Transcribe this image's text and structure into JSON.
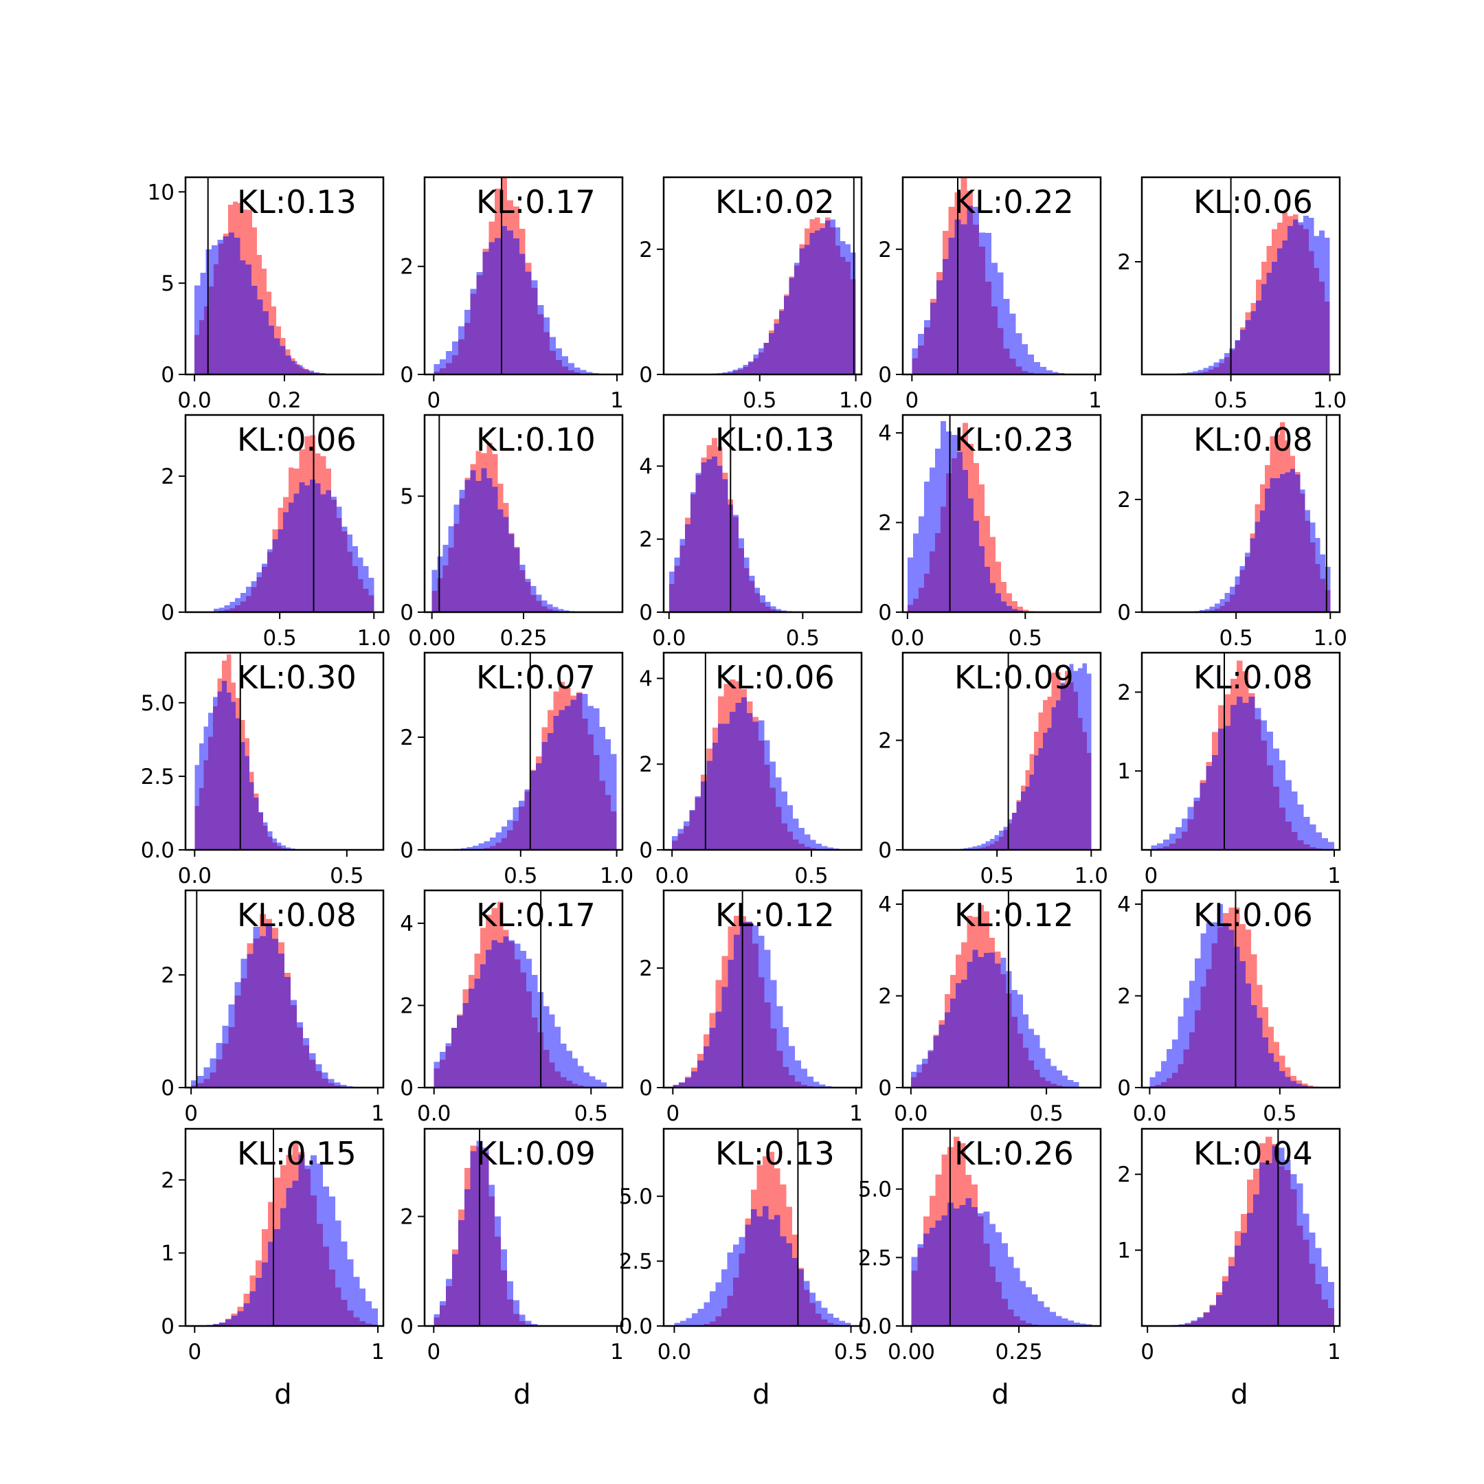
{
  "colors": {
    "red": "#ff0000",
    "blue": "#0000ff",
    "alpha": 0.5,
    "frame": "#000000",
    "vline": "#000000"
  },
  "chart_data": [
    {
      "type": "histogram",
      "kl": "KL:0.13",
      "xlim": [
        -0.02,
        0.42
      ],
      "ylim": [
        0,
        10.8
      ],
      "xticks": [
        0.0,
        0.2
      ],
      "xticklabels": [
        "0.0",
        "0.2"
      ],
      "yticks": [
        0,
        5,
        10
      ],
      "yticklabels": [
        "0",
        "5",
        "10"
      ],
      "vline": 0.03,
      "red": {
        "mu": 0.1,
        "sd": 0.055,
        "peak": 9.5,
        "lo": 0,
        "hi": 0.32
      },
      "blue": {
        "mu": 0.07,
        "sd": 0.07,
        "peak": 7.6,
        "lo": 0,
        "hi": 0.38
      },
      "xlabel": ""
    },
    {
      "type": "histogram",
      "kl": "KL:0.17",
      "xlim": [
        -0.05,
        1.03
      ],
      "ylim": [
        0,
        3.65
      ],
      "xticks": [
        0,
        1
      ],
      "xticklabels": [
        "0",
        "1"
      ],
      "yticks": [
        0,
        2
      ],
      "yticklabels": [
        "0",
        "2"
      ],
      "vline": 0.37,
      "red": {
        "mu": 0.39,
        "sd": 0.13,
        "peak": 3.45,
        "lo": 0,
        "hi": 1
      },
      "blue": {
        "mu": 0.39,
        "sd": 0.16,
        "peak": 2.75,
        "lo": 0,
        "hi": 1
      },
      "xlabel": ""
    },
    {
      "type": "histogram",
      "kl": "KL:0.02",
      "xlim": [
        0,
        1.03
      ],
      "ylim": [
        0,
        3.15
      ],
      "xticks": [
        0.5,
        1.0
      ],
      "xticklabels": [
        "0.5",
        "1.0"
      ],
      "yticks": [
        0,
        2
      ],
      "yticklabels": [
        "0",
        "2"
      ],
      "vline": 0.99,
      "red": {
        "mu": 0.82,
        "sd": 0.16,
        "peak": 2.5,
        "lo": 0.2,
        "hi": 1
      },
      "blue": {
        "mu": 0.85,
        "sd": 0.18,
        "peak": 2.5,
        "lo": 0.2,
        "hi": 1
      },
      "xlabel": ""
    },
    {
      "type": "histogram",
      "kl": "KL:0.22",
      "xlim": [
        -0.05,
        1.03
      ],
      "ylim": [
        0,
        3.15
      ],
      "xticks": [
        0,
        1
      ],
      "xticklabels": [
        "0",
        "1"
      ],
      "yticks": [
        0,
        2
      ],
      "yticklabels": [
        "0",
        "2"
      ],
      "vline": 0.25,
      "red": {
        "mu": 0.28,
        "sd": 0.12,
        "peak": 3.0,
        "lo": 0,
        "hi": 1
      },
      "blue": {
        "mu": 0.32,
        "sd": 0.16,
        "peak": 2.6,
        "lo": 0,
        "hi": 1
      },
      "xlabel": ""
    },
    {
      "type": "histogram",
      "kl": "KL:0.06",
      "xlim": [
        0.05,
        1.05
      ],
      "ylim": [
        0,
        3.5
      ],
      "xticks": [
        0.5,
        1.0
      ],
      "xticklabels": [
        "0.5",
        "1.0"
      ],
      "yticks": [
        2
      ],
      "yticklabels": [
        "2"
      ],
      "vline": 0.5,
      "red": {
        "mu": 0.8,
        "sd": 0.15,
        "peak": 2.9,
        "lo": 0.2,
        "hi": 1
      },
      "blue": {
        "mu": 0.88,
        "sd": 0.2,
        "peak": 2.7,
        "lo": 0.2,
        "hi": 1
      },
      "xlabel": ""
    },
    {
      "type": "histogram",
      "kl": "KL:0.06",
      "xlim": [
        0,
        1.05
      ],
      "ylim": [
        0,
        2.9
      ],
      "xticks": [
        0.5,
        1.0
      ],
      "xticklabels": [
        "0.5",
        "1.0"
      ],
      "yticks": [
        0,
        2
      ],
      "yticklabels": [
        "0",
        "2"
      ],
      "vline": 0.68,
      "red": {
        "mu": 0.66,
        "sd": 0.15,
        "peak": 2.5,
        "lo": 0.15,
        "hi": 1
      },
      "blue": {
        "mu": 0.68,
        "sd": 0.19,
        "peak": 1.9,
        "lo": 0.15,
        "hi": 1
      },
      "xlabel": ""
    },
    {
      "type": "histogram",
      "kl": "KL:0.10",
      "xlim": [
        -0.02,
        0.52
      ],
      "ylim": [
        0,
        8.5
      ],
      "xticks": [
        0.0,
        0.25
      ],
      "xticklabels": [
        "0.00",
        "0.25"
      ],
      "yticks": [
        0,
        5
      ],
      "yticklabels": [
        "0",
        "5"
      ],
      "vline": 0.02,
      "red": {
        "mu": 0.14,
        "sd": 0.065,
        "peak": 7.3,
        "lo": 0,
        "hi": 0.45
      },
      "blue": {
        "mu": 0.13,
        "sd": 0.08,
        "peak": 6.0,
        "lo": 0,
        "hi": 0.45
      },
      "xlabel": ""
    },
    {
      "type": "histogram",
      "kl": "KL:0.13",
      "xlim": [
        -0.02,
        0.72
      ],
      "ylim": [
        0,
        5.4
      ],
      "xticks": [
        0.0,
        0.5
      ],
      "xticklabels": [
        "0.0",
        "0.5"
      ],
      "yticks": [
        0,
        2,
        4
      ],
      "yticklabels": [
        "0",
        "2",
        "4"
      ],
      "vline": 0.23,
      "red": {
        "mu": 0.16,
        "sd": 0.08,
        "peak": 4.7,
        "lo": 0,
        "hi": 0.6
      },
      "blue": {
        "mu": 0.16,
        "sd": 0.09,
        "peak": 4.2,
        "lo": 0,
        "hi": 0.6
      },
      "xlabel": ""
    },
    {
      "type": "histogram",
      "kl": "KL:0.23",
      "xlim": [
        -0.02,
        0.82
      ],
      "ylim": [
        0,
        4.4
      ],
      "xticks": [
        0.0,
        0.5
      ],
      "xticklabels": [
        "0.0",
        "0.5"
      ],
      "yticks": [
        0,
        2,
        4
      ],
      "yticklabels": [
        "0",
        "2",
        "4"
      ],
      "vline": 0.18,
      "red": {
        "mu": 0.24,
        "sd": 0.09,
        "peak": 4.0,
        "lo": 0,
        "hi": 0.7
      },
      "blue": {
        "mu": 0.17,
        "sd": 0.1,
        "peak": 4.2,
        "lo": 0,
        "hi": 0.7
      },
      "xlabel": ""
    },
    {
      "type": "histogram",
      "kl": "KL:0.08",
      "xlim": [
        0,
        1.05
      ],
      "ylim": [
        0,
        3.5
      ],
      "xticks": [
        0.5,
        1.0
      ],
      "xticklabels": [
        "0.5",
        "1.0"
      ],
      "yticks": [
        0,
        2
      ],
      "yticklabels": [
        "0",
        "2"
      ],
      "vline": 0.98,
      "red": {
        "mu": 0.74,
        "sd": 0.12,
        "peak": 3.2,
        "lo": 0.2,
        "hi": 1
      },
      "blue": {
        "mu": 0.76,
        "sd": 0.15,
        "peak": 2.6,
        "lo": 0.2,
        "hi": 1
      },
      "xlabel": ""
    },
    {
      "type": "histogram",
      "kl": "KL:0.30",
      "xlim": [
        -0.03,
        0.62
      ],
      "ylim": [
        0,
        6.7
      ],
      "xticks": [
        0.0,
        0.5
      ],
      "xticklabels": [
        "0.0",
        "0.5"
      ],
      "yticks": [
        0,
        2.5,
        5
      ],
      "yticklabels": [
        "0.0",
        "2.5",
        "5.0"
      ],
      "vline": 0.15,
      "red": {
        "mu": 0.11,
        "sd": 0.06,
        "peak": 6.3,
        "lo": 0,
        "hi": 0.45
      },
      "blue": {
        "mu": 0.09,
        "sd": 0.075,
        "peak": 5.6,
        "lo": 0,
        "hi": 0.45
      },
      "xlabel": ""
    },
    {
      "type": "histogram",
      "kl": "KL:0.07",
      "xlim": [
        0,
        1.03
      ],
      "ylim": [
        0,
        3.5
      ],
      "xticks": [
        0.5,
        1.0
      ],
      "xticklabels": [
        "0.5",
        "1.0"
      ],
      "yticks": [
        0,
        2
      ],
      "yticklabels": [
        "0",
        "2"
      ],
      "vline": 0.55,
      "red": {
        "mu": 0.74,
        "sd": 0.14,
        "peak": 3.0,
        "lo": 0.1,
        "hi": 1
      },
      "blue": {
        "mu": 0.8,
        "sd": 0.2,
        "peak": 2.7,
        "lo": 0.1,
        "hi": 1
      },
      "xlabel": ""
    },
    {
      "type": "histogram",
      "kl": "KL:0.06",
      "xlim": [
        -0.03,
        0.68
      ],
      "ylim": [
        0,
        4.6
      ],
      "xticks": [
        0.0,
        0.5
      ],
      "xticklabels": [
        "0.0",
        "0.5"
      ],
      "yticks": [
        0,
        2,
        4
      ],
      "yticklabels": [
        "0",
        "2",
        "4"
      ],
      "vline": 0.12,
      "red": {
        "mu": 0.23,
        "sd": 0.09,
        "peak": 4.1,
        "lo": 0,
        "hi": 0.62
      },
      "blue": {
        "mu": 0.25,
        "sd": 0.11,
        "peak": 3.5,
        "lo": 0,
        "hi": 0.62
      },
      "xlabel": ""
    },
    {
      "type": "histogram",
      "kl": "KL:0.09",
      "xlim": [
        0,
        1.05
      ],
      "ylim": [
        0,
        3.6
      ],
      "xticks": [
        0.5,
        1.0
      ],
      "xticklabels": [
        "0.5",
        "1.0"
      ],
      "yticks": [
        0,
        2
      ],
      "yticklabels": [
        "0",
        "2"
      ],
      "vline": 0.56,
      "red": {
        "mu": 0.84,
        "sd": 0.14,
        "peak": 3.2,
        "lo": 0.3,
        "hi": 1
      },
      "blue": {
        "mu": 0.95,
        "sd": 0.2,
        "peak": 3.4,
        "lo": 0.3,
        "hi": 1
      },
      "xlabel": ""
    },
    {
      "type": "histogram",
      "kl": "KL:0.08",
      "xlim": [
        -0.05,
        1.03
      ],
      "ylim": [
        0,
        2.5
      ],
      "xticks": [
        0,
        1
      ],
      "xticklabels": [
        "0",
        "1"
      ],
      "yticks": [
        1,
        2
      ],
      "yticklabels": [
        "1",
        "2"
      ],
      "vline": 0.4,
      "red": {
        "mu": 0.48,
        "sd": 0.14,
        "peak": 2.3,
        "lo": 0,
        "hi": 1
      },
      "blue": {
        "mu": 0.52,
        "sd": 0.19,
        "peak": 1.9,
        "lo": 0,
        "hi": 1
      },
      "xlabel": ""
    },
    {
      "type": "histogram",
      "kl": "KL:0.08",
      "xlim": [
        -0.03,
        1.03
      ],
      "ylim": [
        0,
        3.5
      ],
      "xticks": [
        0,
        1
      ],
      "xticklabels": [
        "0",
        "1"
      ],
      "yticks": [
        0,
        2
      ],
      "yticklabels": [
        "0",
        "2"
      ],
      "vline": 0.03,
      "red": {
        "mu": 0.4,
        "sd": 0.13,
        "peak": 3.0,
        "lo": 0,
        "hi": 1
      },
      "blue": {
        "mu": 0.39,
        "sd": 0.15,
        "peak": 2.8,
        "lo": 0,
        "hi": 1
      },
      "xlabel": ""
    },
    {
      "type": "histogram",
      "kl": "KL:0.17",
      "xlim": [
        -0.03,
        0.6
      ],
      "ylim": [
        0,
        4.8
      ],
      "xticks": [
        0.0,
        0.5
      ],
      "xticklabels": [
        "0.0",
        "0.5"
      ],
      "yticks": [
        0,
        2,
        4
      ],
      "yticklabels": [
        "0",
        "2",
        "4"
      ],
      "vline": 0.34,
      "red": {
        "mu": 0.2,
        "sd": 0.09,
        "peak": 4.3,
        "lo": 0,
        "hi": 0.55
      },
      "blue": {
        "mu": 0.23,
        "sd": 0.12,
        "peak": 3.6,
        "lo": 0,
        "hi": 0.55
      },
      "xlabel": ""
    },
    {
      "type": "histogram",
      "kl": "KL:0.12",
      "xlim": [
        -0.05,
        1.03
      ],
      "ylim": [
        0,
        3.3
      ],
      "xticks": [
        0,
        1
      ],
      "xticklabels": [
        "0",
        "1"
      ],
      "yticks": [
        0,
        2
      ],
      "yticklabels": [
        "0",
        "2"
      ],
      "vline": 0.38,
      "red": {
        "mu": 0.37,
        "sd": 0.12,
        "peak": 3.0,
        "lo": 0,
        "hi": 1
      },
      "blue": {
        "mu": 0.42,
        "sd": 0.14,
        "peak": 2.8,
        "lo": 0,
        "hi": 1
      },
      "xlabel": ""
    },
    {
      "type": "histogram",
      "kl": "KL:0.12",
      "xlim": [
        -0.03,
        0.7
      ],
      "ylim": [
        0,
        4.3
      ],
      "xticks": [
        0.0,
        0.5
      ],
      "xticklabels": [
        "0.0",
        "0.5"
      ],
      "yticks": [
        0,
        2,
        4
      ],
      "yticklabels": [
        "0",
        "2",
        "4"
      ],
      "vline": 0.36,
      "red": {
        "mu": 0.25,
        "sd": 0.1,
        "peak": 3.8,
        "lo": 0,
        "hi": 0.62
      },
      "blue": {
        "mu": 0.28,
        "sd": 0.13,
        "peak": 3.0,
        "lo": 0,
        "hi": 0.62
      },
      "xlabel": ""
    },
    {
      "type": "histogram",
      "kl": "KL:0.06",
      "xlim": [
        -0.03,
        0.73
      ],
      "ylim": [
        0,
        4.3
      ],
      "xticks": [
        0.0,
        0.5
      ],
      "xticklabels": [
        "0.0",
        "0.5"
      ],
      "yticks": [
        0,
        2,
        4
      ],
      "yticklabels": [
        "0",
        "2",
        "4"
      ],
      "vline": 0.33,
      "red": {
        "mu": 0.32,
        "sd": 0.1,
        "peak": 4.0,
        "lo": 0,
        "hi": 0.65
      },
      "blue": {
        "mu": 0.27,
        "sd": 0.11,
        "peak": 3.8,
        "lo": 0,
        "hi": 0.65
      },
      "xlabel": ""
    },
    {
      "type": "histogram",
      "kl": "KL:0.15",
      "xlim": [
        -0.05,
        1.03
      ],
      "ylim": [
        0,
        2.7
      ],
      "xticks": [
        0,
        1
      ],
      "xticklabels": [
        "0",
        "1"
      ],
      "yticks": [
        0,
        1,
        2
      ],
      "yticklabels": [
        "0",
        "1",
        "2"
      ],
      "vline": 0.43,
      "red": {
        "mu": 0.54,
        "sd": 0.14,
        "peak": 2.4,
        "lo": 0,
        "hi": 1
      },
      "blue": {
        "mu": 0.62,
        "sd": 0.17,
        "peak": 2.3,
        "lo": 0,
        "hi": 1
      },
      "xlabel": "d"
    },
    {
      "type": "histogram",
      "kl": "KL:0.09",
      "xlim": [
        -0.05,
        1.03
      ],
      "ylim": [
        0,
        3.6
      ],
      "xticks": [
        0,
        1
      ],
      "xticklabels": [
        "0",
        "1"
      ],
      "yticks": [
        0,
        2
      ],
      "yticklabels": [
        "0",
        "2"
      ],
      "vline": 0.25,
      "red": {
        "mu": 0.24,
        "sd": 0.09,
        "peak": 3.4,
        "lo": 0,
        "hi": 1
      },
      "blue": {
        "mu": 0.25,
        "sd": 0.1,
        "peak": 3.3,
        "lo": 0,
        "hi": 1
      },
      "xlabel": "d"
    },
    {
      "type": "histogram",
      "kl": "KL:0.13",
      "xlim": [
        -0.03,
        0.53
      ],
      "ylim": [
        0,
        7.6
      ],
      "xticks": [
        0.0,
        0.5
      ],
      "xticklabels": [
        "0.0",
        "0.5"
      ],
      "yticks": [
        0,
        2.5,
        5
      ],
      "yticklabels": [
        "0.0",
        "2.5",
        "5.0"
      ],
      "vline": 0.35,
      "red": {
        "mu": 0.27,
        "sd": 0.06,
        "peak": 6.8,
        "lo": 0,
        "hi": 0.5
      },
      "blue": {
        "mu": 0.25,
        "sd": 0.09,
        "peak": 4.5,
        "lo": 0,
        "hi": 0.5
      },
      "xlabel": "d"
    },
    {
      "type": "histogram",
      "kl": "KL:0.26",
      "xlim": [
        -0.02,
        0.44
      ],
      "ylim": [
        0,
        7.2
      ],
      "xticks": [
        0.0,
        0.25
      ],
      "xticklabels": [
        "0.00",
        "0.25"
      ],
      "yticks": [
        0,
        2.5,
        5
      ],
      "yticklabels": [
        "0.0",
        "2.5",
        "5.0"
      ],
      "vline": 0.09,
      "red": {
        "mu": 0.1,
        "sd": 0.06,
        "peak": 6.8,
        "lo": 0,
        "hi": 0.42
      },
      "blue": {
        "mu": 0.12,
        "sd": 0.1,
        "peak": 4.6,
        "lo": 0,
        "hi": 0.42
      },
      "xlabel": "d"
    },
    {
      "type": "histogram",
      "kl": "KL:0.04",
      "xlim": [
        -0.03,
        1.03
      ],
      "ylim": [
        0,
        2.6
      ],
      "xticks": [
        0,
        1
      ],
      "xticklabels": [
        "0",
        "1"
      ],
      "yticks": [
        1,
        2
      ],
      "yticklabels": [
        "1",
        "2"
      ],
      "vline": 0.7,
      "red": {
        "mu": 0.66,
        "sd": 0.15,
        "peak": 2.4,
        "lo": 0,
        "hi": 1
      },
      "blue": {
        "mu": 0.7,
        "sd": 0.17,
        "peak": 2.3,
        "lo": 0,
        "hi": 1
      },
      "xlabel": "d"
    }
  ]
}
